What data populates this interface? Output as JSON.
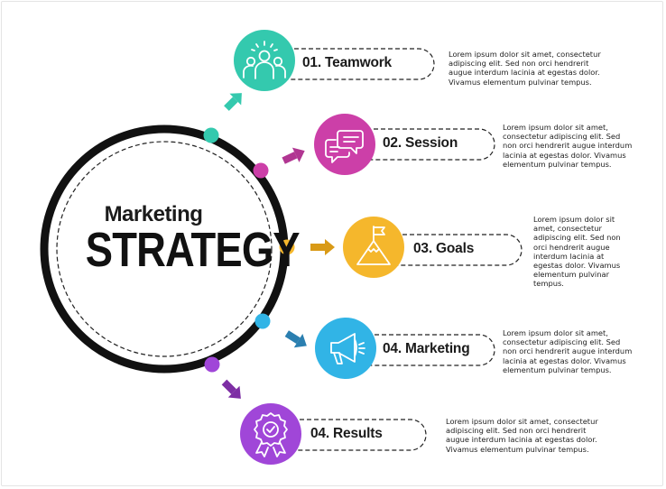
{
  "title": {
    "line1": "Marketing",
    "line2": "STRATEGY"
  },
  "colors": {
    "ring": "#111111",
    "teal": "#34c9ae",
    "magenta": "#cc3fa8",
    "yellow": "#f5b72c",
    "blue": "#31b4e6",
    "purple": "#a046d8"
  },
  "steps": [
    {
      "label": "01. Teamwork",
      "icon": "teamwork-icon",
      "description": "Lorem ipsum dolor sit amet, consectetur\nadipiscing elit. Sed non orci hendrerit\naugue interdum lacinia at egestas dolor.\nVivamus elementum pulvinar tempus."
    },
    {
      "label": "02. Session",
      "icon": "chat-bubbles-icon",
      "description": "Lorem ipsum dolor sit amet,\nconsectetur adipiscing elit. Sed\nnon orci hendrerit augue interdum\nlacinia at egestas dolor. Vivamus\nelementum pulvinar tempus."
    },
    {
      "label": "03. Goals",
      "icon": "mountain-flag-icon",
      "description": "Lorem ipsum dolor sit\namet, consectetur\nadipiscing elit. Sed non\norci hendrerit augue\ninterdum lacinia at\negestas dolor. Vivamus\nelementum pulvinar\ntempus."
    },
    {
      "label": "04. Marketing",
      "icon": "megaphone-icon",
      "description": "Lorem ipsum dolor sit amet,\nconsectetur adipiscing elit. Sed\nnon orci hendrerit augue interdum\nlacinia at egestas dolor. Vivamus\nelementum pulvinar tempus."
    },
    {
      "label": "04. Results",
      "icon": "award-badge-icon",
      "description": "Lorem ipsum dolor sit amet, consectetur\nadipiscing elit. Sed non orci hendrerit\naugue interdum lacinia at egestas dolor.\nVivamus elementum pulvinar tempus."
    }
  ]
}
